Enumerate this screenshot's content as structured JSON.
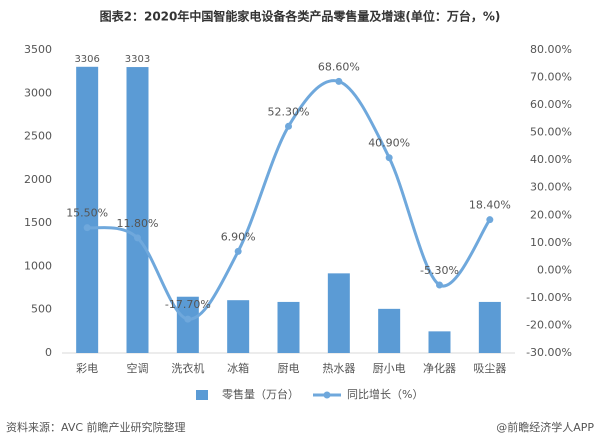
{
  "chart_data": {
    "type": "bar",
    "title": "图表2：2020年中国智能家电设备各类产品零售量及增速(单位：万台，%)",
    "categories": [
      "彩电",
      "空调",
      "洗衣机",
      "冰箱",
      "厨电",
      "热水器",
      "厨小电",
      "净化器",
      "吸尘器"
    ],
    "series": [
      {
        "name": "零售量（万台）",
        "type": "bar",
        "axis": "y",
        "color": "#5b9bd5",
        "values": [
          3306,
          3303,
          650,
          610,
          590,
          920,
          510,
          250,
          590
        ],
        "value_labels": [
          "3306",
          "3303",
          null,
          null,
          null,
          null,
          null,
          null,
          null
        ]
      },
      {
        "name": "同比增长（%）",
        "type": "line",
        "axis": "y2",
        "color": "#6fa8dc",
        "values": [
          15.5,
          11.8,
          -17.7,
          6.9,
          52.3,
          68.6,
          40.9,
          -5.3,
          18.4
        ],
        "value_labels": [
          "15.50%",
          "11.80%",
          "-17.70%",
          "6.90%",
          "52.30%",
          "68.60%",
          "40.90%",
          "-5.30%",
          "18.40%"
        ]
      }
    ],
    "ylim": [
      0,
      3500
    ],
    "yticks": [
      0,
      500,
      1000,
      1500,
      2000,
      2500,
      3000,
      3500
    ],
    "y2lim": [
      -30,
      80
    ],
    "y2ticks": [
      {
        "value": -30,
        "label": "-30.00%"
      },
      {
        "value": -20,
        "label": "-20.00%"
      },
      {
        "value": -10,
        "label": "-10.00%"
      },
      {
        "value": 0,
        "label": "0.00%"
      },
      {
        "value": 10,
        "label": "10.00%"
      },
      {
        "value": 20,
        "label": "20.00%"
      },
      {
        "value": 30,
        "label": "30.00%"
      },
      {
        "value": 40,
        "label": "40.00%"
      },
      {
        "value": 50,
        "label": "50.00%"
      },
      {
        "value": 60,
        "label": "60.00%"
      },
      {
        "value": 70,
        "label": "70.00%"
      },
      {
        "value": 80,
        "label": "80.00%"
      }
    ],
    "grid": false,
    "legend": "bottom",
    "source": "资料来源：AVC 前瞻产业研究院整理",
    "credit": "@前瞻经济学人APP"
  }
}
